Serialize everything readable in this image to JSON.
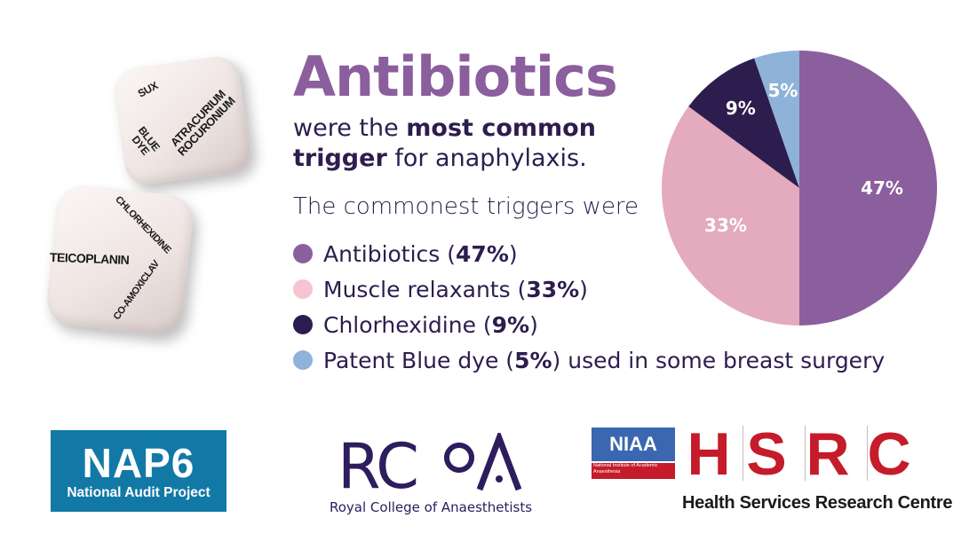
{
  "headline": {
    "title": "Antibiotics",
    "line1_pre": "were the ",
    "line1_bold": "most common",
    "line2_bold": "trigger",
    "line2_post": " for anaphylaxis.",
    "intro": "The commonest triggers were"
  },
  "legend": [
    {
      "label": "Antibiotics (",
      "value": "47%",
      "suffix": ")",
      "color": "#8b5e9e"
    },
    {
      "label": "Muscle relaxants (",
      "value": "33%",
      "suffix": ")",
      "color": "#f4c5cf"
    },
    {
      "label": "Chlorhexidine (",
      "value": "9%",
      "suffix": ")",
      "color": "#2d1d4e"
    },
    {
      "label": "Patent Blue dye (",
      "value": "5%",
      "suffix": ") used in some breast surgery",
      "color": "#8fb2d8"
    }
  ],
  "chart_data": {
    "type": "pie",
    "categories": [
      "Antibiotics",
      "Muscle relaxants",
      "Chlorhexidine",
      "Patent Blue dye"
    ],
    "values": [
      47,
      33,
      9,
      5
    ],
    "labels": [
      "47%",
      "33%",
      "9%",
      "5%"
    ],
    "colors": [
      "#8b5e9e",
      "#e3abbd",
      "#2d1d4e",
      "#8fb2d8"
    ],
    "label_colors": [
      "#ffffff",
      "#ffffff",
      "#ffffff",
      "#ffffff"
    ]
  },
  "dice": {
    "top_face_top": "SUX",
    "top_face_left": "BLUE DYE",
    "top_face_right": "ATRACURIUM ROCURONIUM",
    "bottom_face_top": "CHLORHEXIDINE",
    "bottom_face_left": "TEICOPLANIN",
    "bottom_face_right": "CO-AMOXICLAV"
  },
  "logos": {
    "nap_big": "NAP6",
    "nap_small": "National Audit Project",
    "rcoa_mark": "RCoA",
    "rcoa_name": "Royal College of Anaesthetists",
    "niaa": "NIAA",
    "niaa_sub": "National Institute of Academic Anaesthesia",
    "hsrc_letters": [
      "H",
      "S",
      "R",
      "C"
    ],
    "hsrc_name": "Health Services Research Centre"
  }
}
